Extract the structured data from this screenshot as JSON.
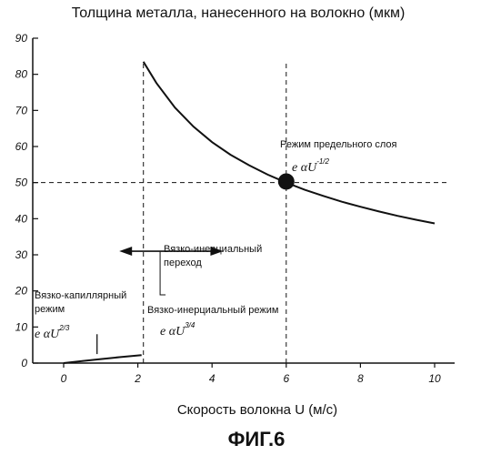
{
  "chart_data": {
    "type": "line",
    "title": "Толщина металла, нанесенного на волокно (мкм)",
    "xlabel": "Скорость волокна U (м/с)",
    "ylabel": "",
    "xlim": [
      -1,
      10.5
    ],
    "ylim": [
      0,
      90
    ],
    "x_ticks": [
      "0",
      "2",
      "4",
      "6",
      "8",
      "10"
    ],
    "y_ticks": [
      "0",
      "10",
      "20",
      "30",
      "40",
      "50",
      "60",
      "70",
      "80",
      "90"
    ],
    "series": [
      {
        "x": [
          0,
          0.5,
          1,
          1.5,
          2.1
        ],
        "y": [
          0,
          0.55,
          1.1,
          1.65,
          2.2
        ]
      },
      {
        "x": [
          2.15,
          2.5,
          3,
          3.5,
          4,
          4.5,
          5,
          5.5,
          6,
          6.5,
          7,
          7.5,
          8,
          8.5,
          9,
          9.5,
          10
        ],
        "y": [
          83.5,
          77.6,
          70.8,
          65.5,
          61.2,
          57.7,
          54.8,
          52.2,
          50.0,
          48.0,
          46.3,
          44.7,
          43.3,
          42.0,
          40.8,
          39.7,
          38.7
        ]
      }
    ],
    "reference_lines": [
      {
        "orientation": "horizontal",
        "y": 50
      },
      {
        "orientation": "vertical",
        "x": 2.15
      },
      {
        "orientation": "vertical",
        "x": 6
      }
    ],
    "marker": {
      "x": 6,
      "y": 50.3
    },
    "transition_arrow": {
      "x_from": 1.5,
      "x_to": 4.3,
      "y": 31,
      "tick_x": 2.6
    },
    "small_mark": {
      "x": 0.9,
      "y_from": 2.5,
      "y_to": 8
    },
    "annotations": {
      "limit_regime": "Режим предельного слоя",
      "limit_formula_base": "e αU",
      "limit_formula_exp": "-1/2",
      "transition_line1": "Вязко-инерциальный",
      "transition_line2": "переход",
      "capillary_line1": "Вязко-капиллярный",
      "capillary_line2": "режим",
      "capillary_formula_base": "e αU",
      "capillary_formula_exp": "2/3",
      "inertial_regime": "Вязко-инерциальный режим",
      "inertial_formula_base": "e αU",
      "inertial_formula_exp": "3/4"
    },
    "figure_label": "ФИГ.6"
  }
}
